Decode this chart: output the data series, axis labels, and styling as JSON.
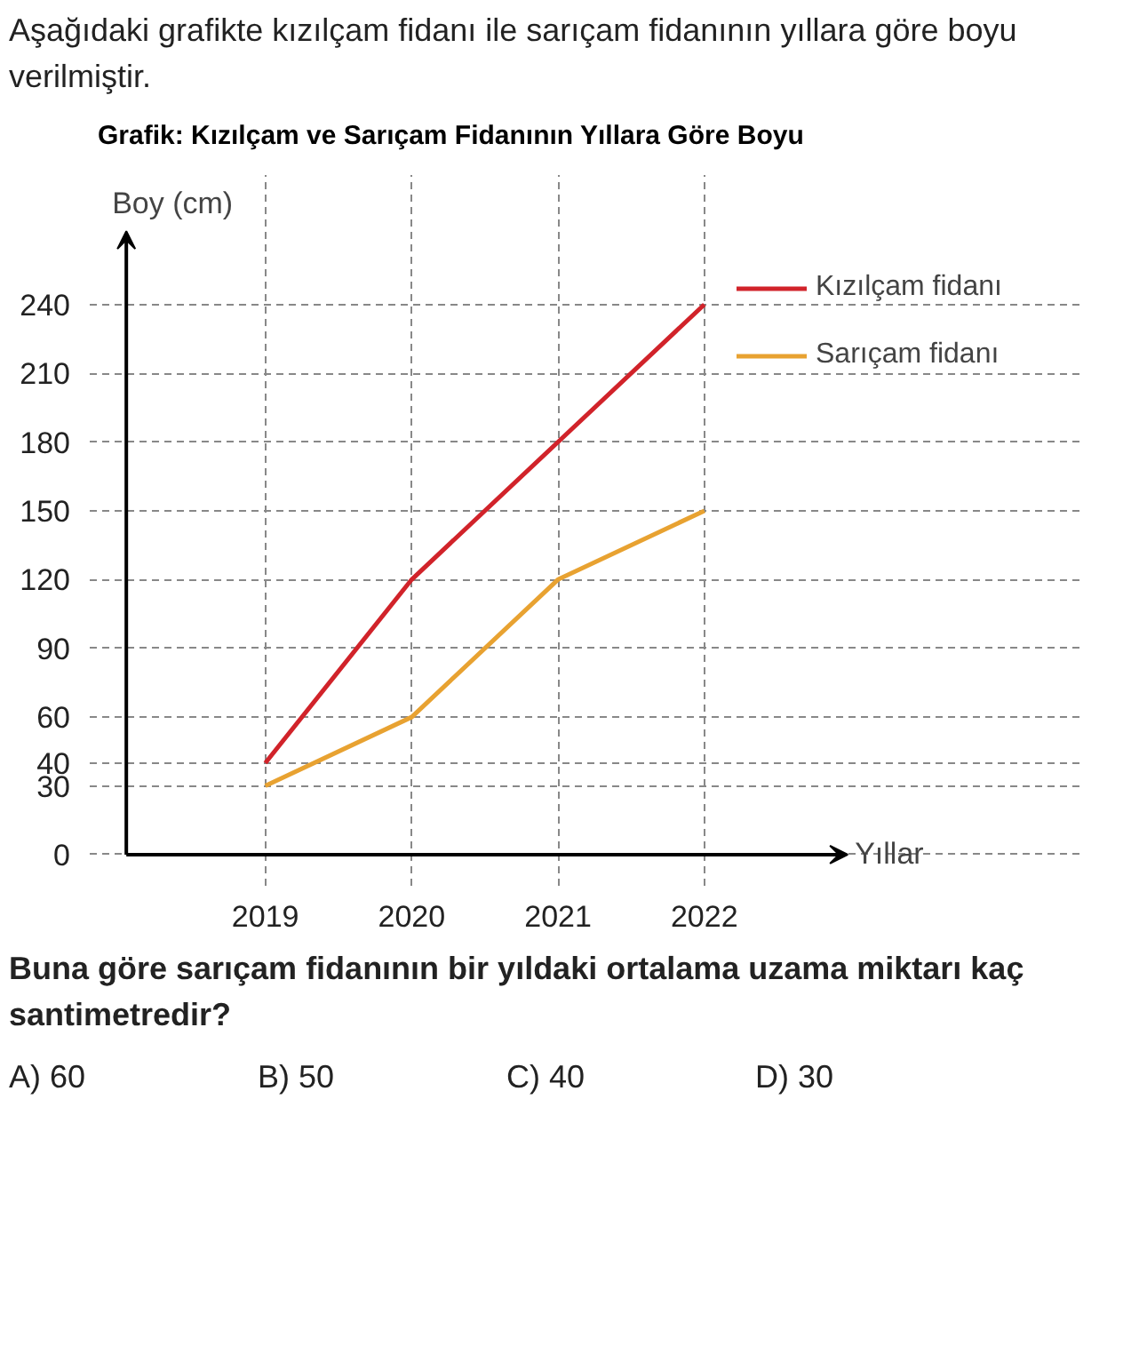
{
  "chart_data": {
    "type": "line",
    "title": "Grafik: Kızılçam ve Sarıçam Fidanının Yıllara Göre Boyu",
    "xlabel": "Yıllar",
    "ylabel": "Boy (cm)",
    "categories": [
      "2019",
      "2020",
      "2021",
      "2022"
    ],
    "series": [
      {
        "name": "Kızılçam fidanı",
        "color": "#d1232a",
        "values": [
          40,
          120,
          180,
          240
        ]
      },
      {
        "name": "Sarıçam fidanı",
        "color": "#e8a231",
        "values": [
          30,
          60,
          120,
          150
        ]
      }
    ],
    "ylim": [
      0,
      272
    ],
    "yticks": [
      0,
      30,
      40,
      60,
      90,
      120,
      150,
      180,
      210,
      240
    ],
    "grid": true,
    "legend": "right",
    "marker": "none",
    "line_style": "solid",
    "annotations": [
      "Aşağıdaki grafikte kızılçam fidanı ile sarıçam fidanının yıllara göre boyu verilmiştir.",
      "Buna göre sarıçam fidanının bir yıldaki ortalama uzama miktarı kaç santimetredir?",
      "A) 60",
      "B) 50",
      "C) 40",
      "D) 30"
    ]
  }
}
